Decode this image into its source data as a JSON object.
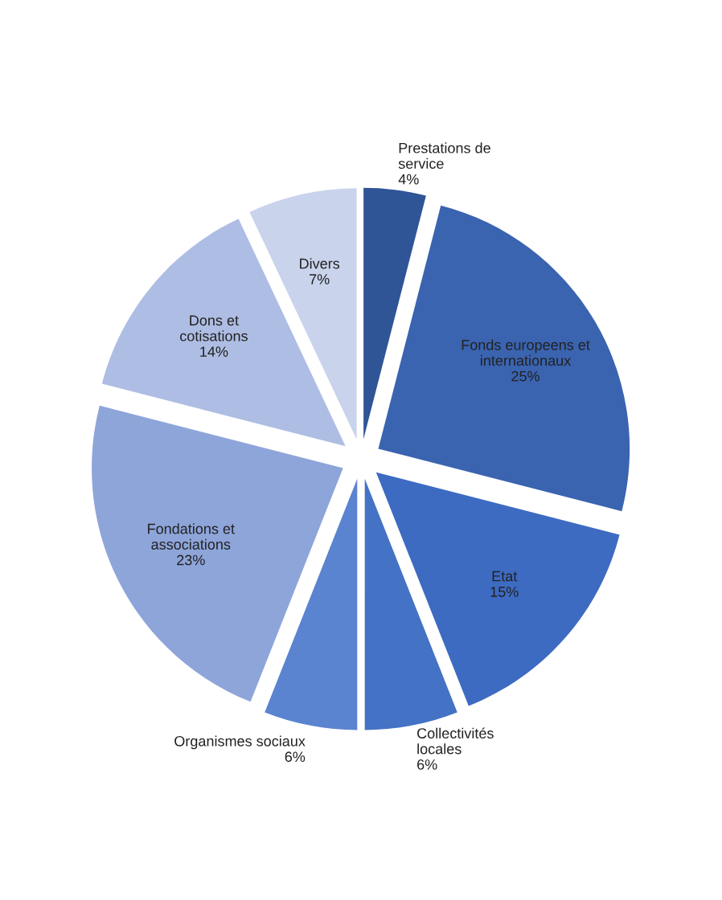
{
  "chart_data": {
    "type": "pie",
    "categories": [
      "Prestations de service",
      "Fonds europeens et internationaux",
      "Etat",
      "Collectivités locales",
      "Organismes sociaux",
      "Fondations et associations",
      "Dons et cotisations",
      "Divers"
    ],
    "values": [
      4,
      25,
      15,
      6,
      6,
      23,
      14,
      7
    ],
    "value_labels": [
      "4%",
      "25%",
      "15%",
      "6%",
      "6%",
      "23%",
      "14%",
      "7%"
    ],
    "colors": [
      "#2f5597",
      "#3a63b0",
      "#3d6bc2",
      "#4472c4",
      "#5a83d0",
      "#8ea5da",
      "#aebde3",
      "#c9d3ec"
    ],
    "legend": false
  }
}
